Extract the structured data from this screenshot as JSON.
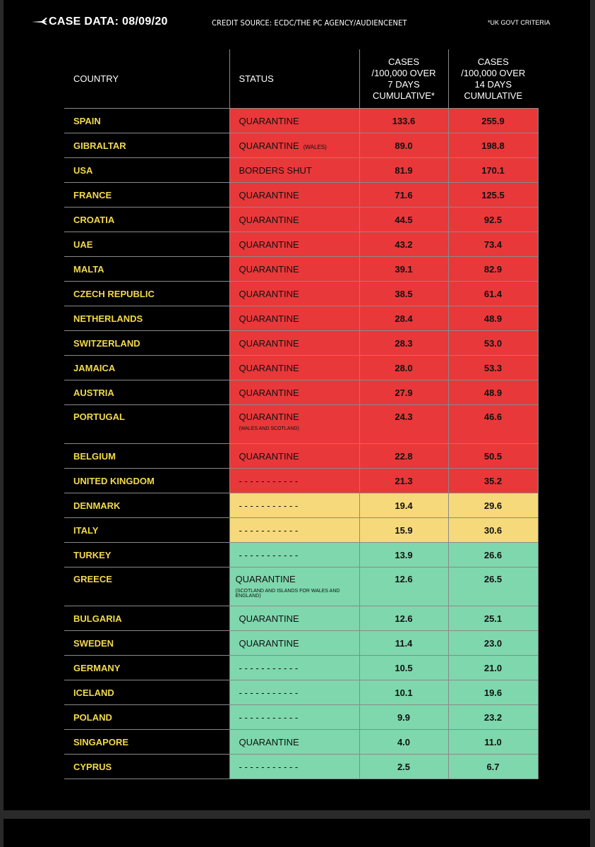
{
  "header": {
    "title": "CASE DATA: 08/09/20",
    "credit": "CREDIT SOURCE: ECDC/THE PC AGENCY/AUDIENCENET",
    "criteria": "*UK GOVT CRITERIA"
  },
  "columns": {
    "country": "COUNTRY",
    "status": "STATUS",
    "cases7_l1": "CASES",
    "cases7_l2": "/100,000 OVER",
    "cases7_l3": "7 DAYS",
    "cases7_l4": "CUMULATIVE*",
    "cases14_l1": "CASES",
    "cases14_l2": "/100,000 OVER",
    "cases14_l3": "14 DAYS",
    "cases14_l4": "CUMULATIVE"
  },
  "colors": {
    "red": "#e8383a",
    "yellow": "#f6d97a",
    "green": "#7ed7ad",
    "country_text": "#f2da4b"
  },
  "rows": [
    {
      "country": "SPAIN",
      "status": "QUARANTINE",
      "note": "",
      "note_below": "",
      "c7": "133.6",
      "c14": "255.9",
      "color": "red"
    },
    {
      "country": "GIBRALTAR",
      "status": "QUARANTINE",
      "note": "(WALES)",
      "note_below": "",
      "c7": "89.0",
      "c14": "198.8",
      "color": "red"
    },
    {
      "country": "USA",
      "status": "BORDERS SHUT",
      "note": "",
      "note_below": "",
      "c7": "81.9",
      "c14": "170.1",
      "color": "red"
    },
    {
      "country": "FRANCE",
      "status": "QUARANTINE",
      "note": "",
      "note_below": "",
      "c7": "71.6",
      "c14": "125.5",
      "color": "red"
    },
    {
      "country": "CROATIA",
      "status": "QUARANTINE",
      "note": "",
      "note_below": "",
      "c7": "44.5",
      "c14": "92.5",
      "color": "red"
    },
    {
      "country": "UAE",
      "status": "QUARANTINE",
      "note": "",
      "note_below": "",
      "c7": "43.2",
      "c14": "73.4",
      "color": "red"
    },
    {
      "country": "MALTA",
      "status": "QUARANTINE",
      "note": "",
      "note_below": "",
      "c7": "39.1",
      "c14": "82.9",
      "color": "red"
    },
    {
      "country": "CZECH REPUBLIC",
      "status": "QUARANTINE",
      "note": "",
      "note_below": "",
      "c7": "38.5",
      "c14": "61.4",
      "color": "red"
    },
    {
      "country": "NETHERLANDS",
      "status": "QUARANTINE",
      "note": "",
      "note_below": "",
      "c7": "28.4",
      "c14": "48.9",
      "color": "red"
    },
    {
      "country": "SWITZERLAND",
      "status": "QUARANTINE",
      "note": "",
      "note_below": "",
      "c7": "28.3",
      "c14": "53.0",
      "color": "red"
    },
    {
      "country": "JAMAICA",
      "status": "QUARANTINE",
      "note": "",
      "note_below": "",
      "c7": "28.0",
      "c14": "53.3",
      "color": "red"
    },
    {
      "country": "AUSTRIA",
      "status": "QUARANTINE",
      "note": "",
      "note_below": "",
      "c7": "27.9",
      "c14": "48.9",
      "color": "red"
    },
    {
      "country": "PORTUGAL",
      "status": "QUARANTINE",
      "note": "",
      "note_below": "(WALES AND SCOTLAND)",
      "c7": "24.3",
      "c14": "46.6",
      "color": "red"
    },
    {
      "country": "BELGIUM",
      "status": "QUARANTINE",
      "note": "",
      "note_below": "",
      "c7": "22.8",
      "c14": "50.5",
      "color": "red"
    },
    {
      "country": "UNITED KINGDOM",
      "status": "- - - - - - - - - - -",
      "note": "",
      "note_below": "",
      "c7": "21.3",
      "c14": "35.2",
      "color": "red"
    },
    {
      "country": "DENMARK",
      "status": "- - - - - - - - - - -",
      "note": "",
      "note_below": "",
      "c7": "19.4",
      "c14": "29.6",
      "color": "yellow"
    },
    {
      "country": "ITALY",
      "status": "- - - - - - - - - - -",
      "note": "",
      "note_below": "",
      "c7": "15.9",
      "c14": "30.6",
      "color": "yellow"
    },
    {
      "country": "TURKEY",
      "status": "- - - - - - - - - - -",
      "note": "",
      "note_below": "",
      "c7": "13.9",
      "c14": "26.6",
      "color": "green"
    },
    {
      "country": "GREECE",
      "status": "QUARANTINE",
      "note": "",
      "note_below": "(SCOTLAND AND ISLANDS FOR WALES AND ENGLAND)",
      "c7": "12.6",
      "c14": "26.5",
      "color": "green"
    },
    {
      "country": "BULGARIA",
      "status": "QUARANTINE",
      "note": "",
      "note_below": "",
      "c7": "12.6",
      "c14": "25.1",
      "color": "green"
    },
    {
      "country": "SWEDEN",
      "status": "QUARANTINE",
      "note": "",
      "note_below": "",
      "c7": "11.4",
      "c14": "23.0",
      "color": "green"
    },
    {
      "country": "GERMANY",
      "status": "- - - - - - - - - - -",
      "note": "",
      "note_below": "",
      "c7": "10.5",
      "c14": "21.0",
      "color": "green"
    },
    {
      "country": "ICELAND",
      "status": "- - - - - - - - - - -",
      "note": "",
      "note_below": "",
      "c7": "10.1",
      "c14": "19.6",
      "color": "green"
    },
    {
      "country": "POLAND",
      "status": "- - - - - - - - - - -",
      "note": "",
      "note_below": "",
      "c7": "9.9",
      "c14": "23.2",
      "color": "green"
    },
    {
      "country": "SINGAPORE",
      "status": "QUARANTINE",
      "note": "",
      "note_below": "",
      "c7": "4.0",
      "c14": "11.0",
      "color": "green"
    },
    {
      "country": "CYPRUS",
      "status": "- - - - - - - - - - -",
      "note": "",
      "note_below": "",
      "c7": "2.5",
      "c14": "6.7",
      "color": "green"
    }
  ]
}
